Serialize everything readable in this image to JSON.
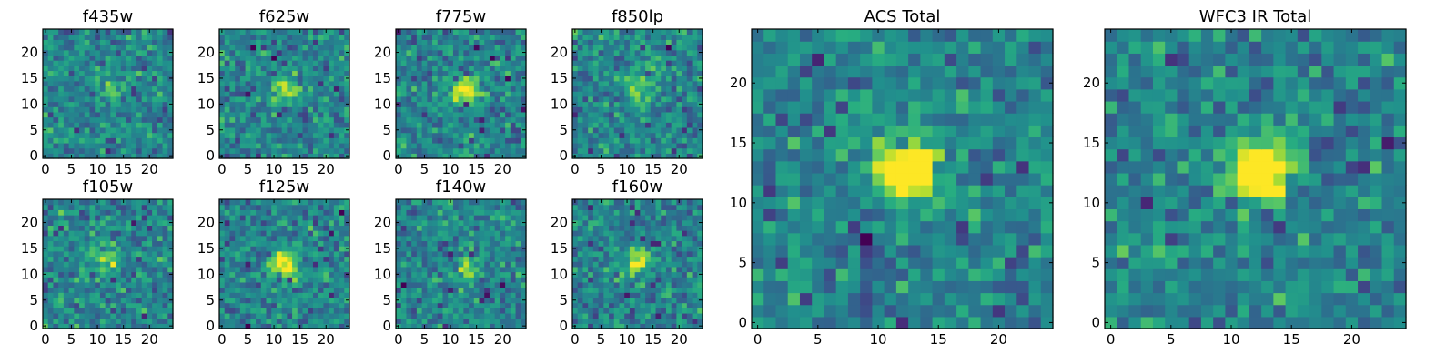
{
  "chart_data": [
    {
      "type": "heatmap",
      "title": "f435w",
      "xlabel": "",
      "ylabel": "",
      "xlim": [
        -0.5,
        24.5
      ],
      "ylim": [
        -0.5,
        24.5
      ],
      "shape": [
        25,
        25
      ],
      "xticks": [
        0,
        5,
        10,
        15,
        20
      ],
      "yticks": [
        0,
        5,
        10,
        15,
        20
      ],
      "colormap": "viridis",
      "source_peak": [
        12,
        13
      ],
      "source_strength": 0.25
    },
    {
      "type": "heatmap",
      "title": "f625w",
      "xlabel": "",
      "ylabel": "",
      "xlim": [
        -0.5,
        24.5
      ],
      "ylim": [
        -0.5,
        24.5
      ],
      "shape": [
        25,
        25
      ],
      "xticks": [
        0,
        5,
        10,
        15,
        20
      ],
      "yticks": [
        0,
        5,
        10,
        15,
        20
      ],
      "colormap": "viridis",
      "source_peak": [
        12,
        13
      ],
      "source_strength": 0.5
    },
    {
      "type": "heatmap",
      "title": "f775w",
      "xlabel": "",
      "ylabel": "",
      "xlim": [
        -0.5,
        24.5
      ],
      "ylim": [
        -0.5,
        24.5
      ],
      "shape": [
        25,
        25
      ],
      "xticks": [
        0,
        5,
        10,
        15,
        20
      ],
      "yticks": [
        0,
        5,
        10,
        15,
        20
      ],
      "colormap": "viridis",
      "source_peak": [
        13,
        13
      ],
      "source_strength": 0.6
    },
    {
      "type": "heatmap",
      "title": "f850lp",
      "xlabel": "",
      "ylabel": "",
      "xlim": [
        -0.5,
        24.5
      ],
      "ylim": [
        -0.5,
        24.5
      ],
      "shape": [
        25,
        25
      ],
      "xticks": [
        0,
        5,
        10,
        15,
        20
      ],
      "yticks": [
        0,
        5,
        10,
        15,
        20
      ],
      "colormap": "viridis",
      "source_peak": [
        12,
        13
      ],
      "source_strength": 0.35
    },
    {
      "type": "heatmap",
      "title": "f105w",
      "xlabel": "",
      "ylabel": "",
      "xlim": [
        -0.5,
        24.5
      ],
      "ylim": [
        -0.5,
        24.5
      ],
      "shape": [
        25,
        25
      ],
      "xticks": [
        0,
        5,
        10,
        15,
        20
      ],
      "yticks": [
        0,
        5,
        10,
        15,
        20
      ],
      "colormap": "viridis",
      "source_peak": [
        12,
        13
      ],
      "source_strength": 0.4
    },
    {
      "type": "heatmap",
      "title": "f125w",
      "xlabel": "",
      "ylabel": "",
      "xlim": [
        -0.5,
        24.5
      ],
      "ylim": [
        -0.5,
        24.5
      ],
      "shape": [
        25,
        25
      ],
      "xticks": [
        0,
        5,
        10,
        15,
        20
      ],
      "yticks": [
        0,
        5,
        10,
        15,
        20
      ],
      "colormap": "viridis",
      "source_peak": [
        12,
        12
      ],
      "source_strength": 0.6
    },
    {
      "type": "heatmap",
      "title": "f140w",
      "xlabel": "",
      "ylabel": "",
      "xlim": [
        -0.5,
        24.5
      ],
      "ylim": [
        -0.5,
        24.5
      ],
      "shape": [
        25,
        25
      ],
      "xticks": [
        0,
        5,
        10,
        15,
        20
      ],
      "yticks": [
        0,
        5,
        10,
        15,
        20
      ],
      "colormap": "viridis",
      "source_peak": [
        13,
        11
      ],
      "source_strength": 0.4
    },
    {
      "type": "heatmap",
      "title": "f160w",
      "xlabel": "",
      "ylabel": "",
      "xlim": [
        -0.5,
        24.5
      ],
      "ylim": [
        -0.5,
        24.5
      ],
      "shape": [
        25,
        25
      ],
      "xticks": [
        0,
        5,
        10,
        15,
        20
      ],
      "yticks": [
        0,
        5,
        10,
        15,
        20
      ],
      "colormap": "viridis",
      "source_peak": [
        12,
        13
      ],
      "source_strength": 0.5
    },
    {
      "type": "heatmap",
      "title": "ACS Total",
      "xlabel": "",
      "ylabel": "",
      "xlim": [
        -0.5,
        24.5
      ],
      "ylim": [
        -0.5,
        24.5
      ],
      "shape": [
        25,
        25
      ],
      "xticks": [
        0,
        5,
        10,
        15,
        20
      ],
      "yticks": [
        0,
        5,
        10,
        15,
        20
      ],
      "colormap": "viridis",
      "source_peak": [
        12.5,
        13
      ],
      "source_strength": 0.85
    },
    {
      "type": "heatmap",
      "title": "WFC3 IR Total",
      "xlabel": "",
      "ylabel": "",
      "xlim": [
        -0.5,
        24.5
      ],
      "ylim": [
        -0.5,
        24.5
      ],
      "shape": [
        25,
        25
      ],
      "xticks": [
        0,
        5,
        10,
        15,
        20
      ],
      "yticks": [
        0,
        5,
        10,
        15,
        20
      ],
      "colormap": "viridis",
      "source_peak": [
        12.5,
        13
      ],
      "source_strength": 0.85
    }
  ]
}
